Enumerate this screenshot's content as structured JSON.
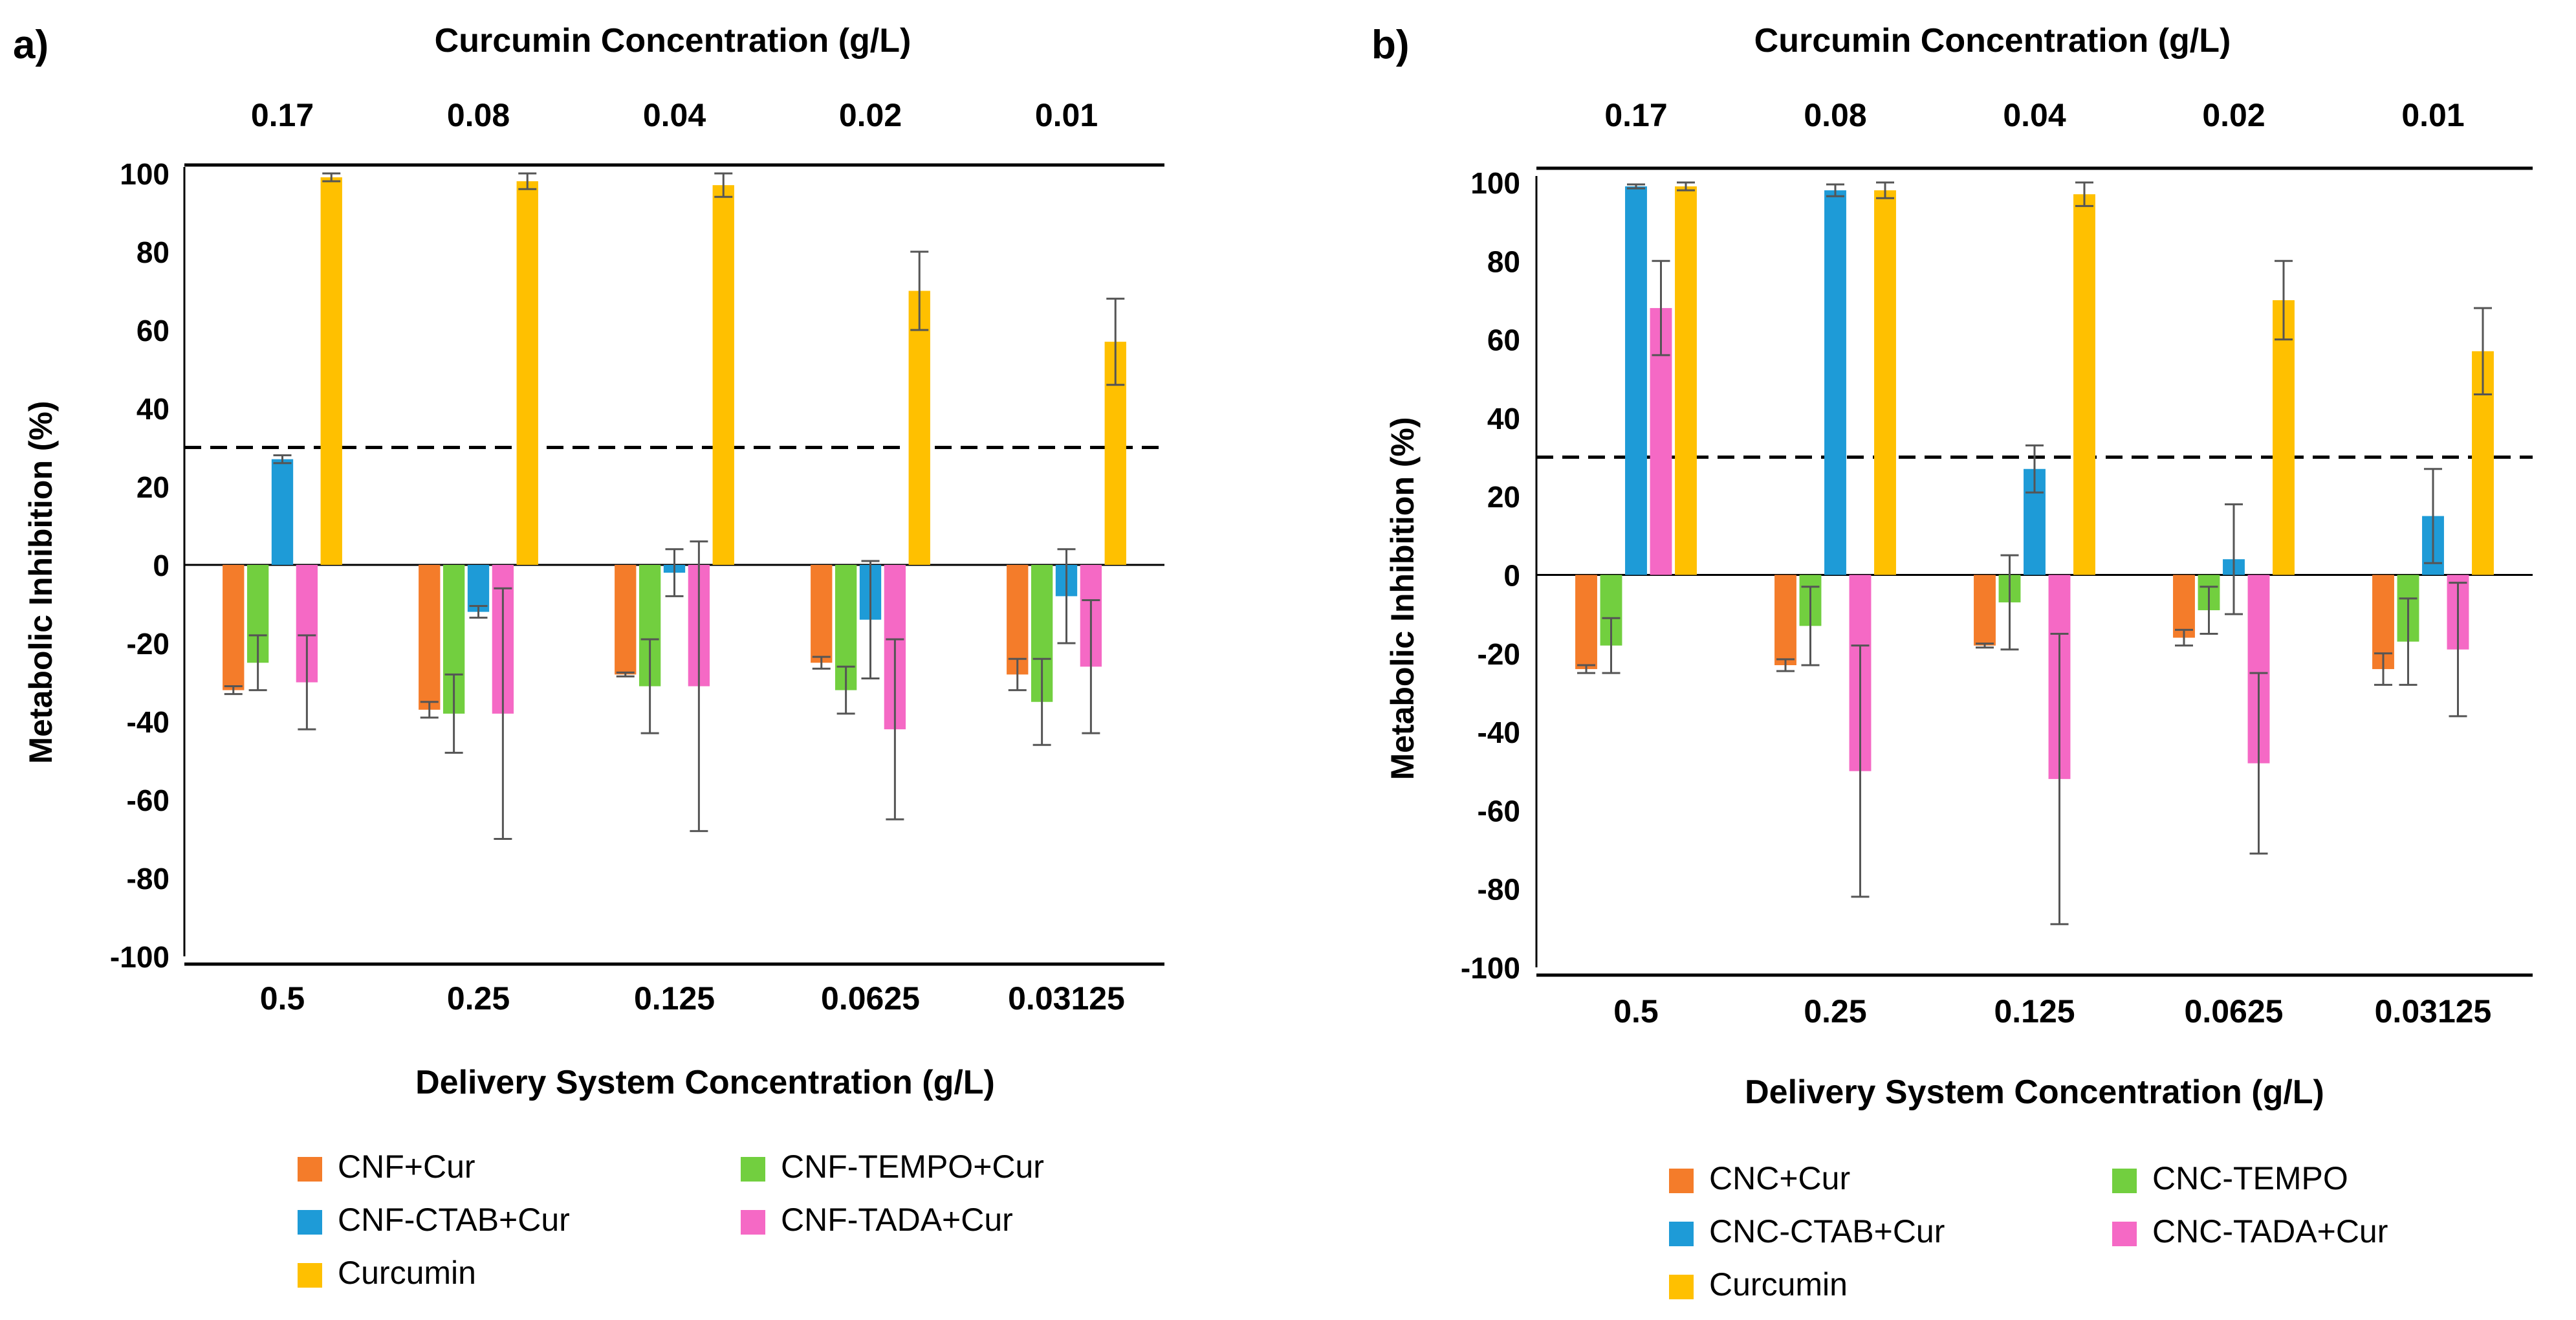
{
  "chart_data": [
    {
      "type": "bar",
      "panel_label": "a)",
      "top_axis_title": "Curcumin Concentration (g/L)",
      "top_tick_labels": [
        "0.17",
        "0.08",
        "0.04",
        "0.02",
        "0.01"
      ],
      "xlabel": "Delivery System Concentration (g/L)",
      "ylabel": "Metabolic Inhibition (%)",
      "categories": [
        "0.5",
        "0.25",
        "0.125",
        "0.0625",
        "0.03125"
      ],
      "ylim": [
        -100,
        100
      ],
      "yticks": [
        "100",
        "80",
        "60",
        "40",
        "20",
        "0",
        "-20",
        "-40",
        "-60",
        "-80",
        "-100"
      ],
      "threshold": 30,
      "series": [
        {
          "name": "CNF+Cur",
          "color": "#F47C2A",
          "values": [
            -32,
            -37,
            -28,
            -25,
            -28
          ],
          "errors": [
            1,
            2,
            0.5,
            1.5,
            4
          ]
        },
        {
          "name": "CNF-TEMPO+Cur",
          "color": "#72CF3F",
          "values": [
            -25,
            -38,
            -31,
            -32,
            -35
          ],
          "errors": [
            7,
            10,
            12,
            6,
            11
          ]
        },
        {
          "name": "CNF-CTAB+Cur",
          "color": "#1E9BD7",
          "values": [
            27,
            -12,
            -2,
            -14,
            -8
          ],
          "errors": [
            1,
            1.5,
            6,
            15,
            12
          ]
        },
        {
          "name": "CNF-TADA+Cur",
          "color": "#F569C5",
          "values": [
            -30,
            -38,
            -31,
            -42,
            -26
          ],
          "errors": [
            12,
            32,
            37,
            23,
            17
          ]
        },
        {
          "name": "Curcumin",
          "color": "#FFC000",
          "values": [
            99,
            98,
            97,
            70,
            57
          ],
          "errors": [
            1,
            2,
            3,
            10,
            11
          ]
        }
      ],
      "legend": [
        "CNF+Cur",
        "CNF-TEMPO+Cur",
        "CNF-CTAB+Cur",
        "CNF-TADA+Cur",
        "Curcumin"
      ]
    },
    {
      "type": "bar",
      "panel_label": "b)",
      "top_axis_title": "Curcumin Concentration (g/L)",
      "top_tick_labels": [
        "0.17",
        "0.08",
        "0.04",
        "0.02",
        "0.01"
      ],
      "xlabel": "Delivery System Concentration (g/L)",
      "ylabel": "Metabolic Inhibition (%)",
      "categories": [
        "0.5",
        "0.25",
        "0.125",
        "0.0625",
        "0.03125"
      ],
      "ylim": [
        -100,
        100
      ],
      "yticks": [
        "100",
        "80",
        "60",
        "40",
        "20",
        "0",
        "-20",
        "-40",
        "-60",
        "-80",
        "-100"
      ],
      "threshold": 30,
      "series": [
        {
          "name": "CNC+Cur",
          "color": "#F47C2A",
          "values": [
            -24,
            -23,
            -18,
            -16,
            -24
          ],
          "errors": [
            1,
            1.5,
            0.5,
            2,
            4
          ]
        },
        {
          "name": "CNC-TEMPO",
          "color": "#72CF3F",
          "values": [
            -18,
            -13,
            -7,
            -9,
            -17
          ],
          "errors": [
            7,
            10,
            12,
            6,
            11
          ]
        },
        {
          "name": "CNC-CTAB+Cur",
          "color": "#1E9BD7",
          "values": [
            99,
            98,
            27,
            4,
            15
          ],
          "errors": [
            0.5,
            1.5,
            6,
            14,
            12
          ]
        },
        {
          "name": "CNC-TADA+Cur",
          "color": "#F569C5",
          "values": [
            68,
            -50,
            -52,
            -48,
            -19
          ],
          "errors": [
            12,
            32,
            37,
            23,
            17
          ]
        },
        {
          "name": "Curcumin",
          "color": "#FFC000",
          "values": [
            99,
            98,
            97,
            70,
            57
          ],
          "errors": [
            1,
            2,
            3,
            10,
            11
          ]
        }
      ],
      "legend": [
        "CNC+Cur",
        "CNC-TEMPO",
        "CNC-CTAB+Cur",
        "CNC-TADA+Cur",
        "Curcumin"
      ]
    }
  ]
}
